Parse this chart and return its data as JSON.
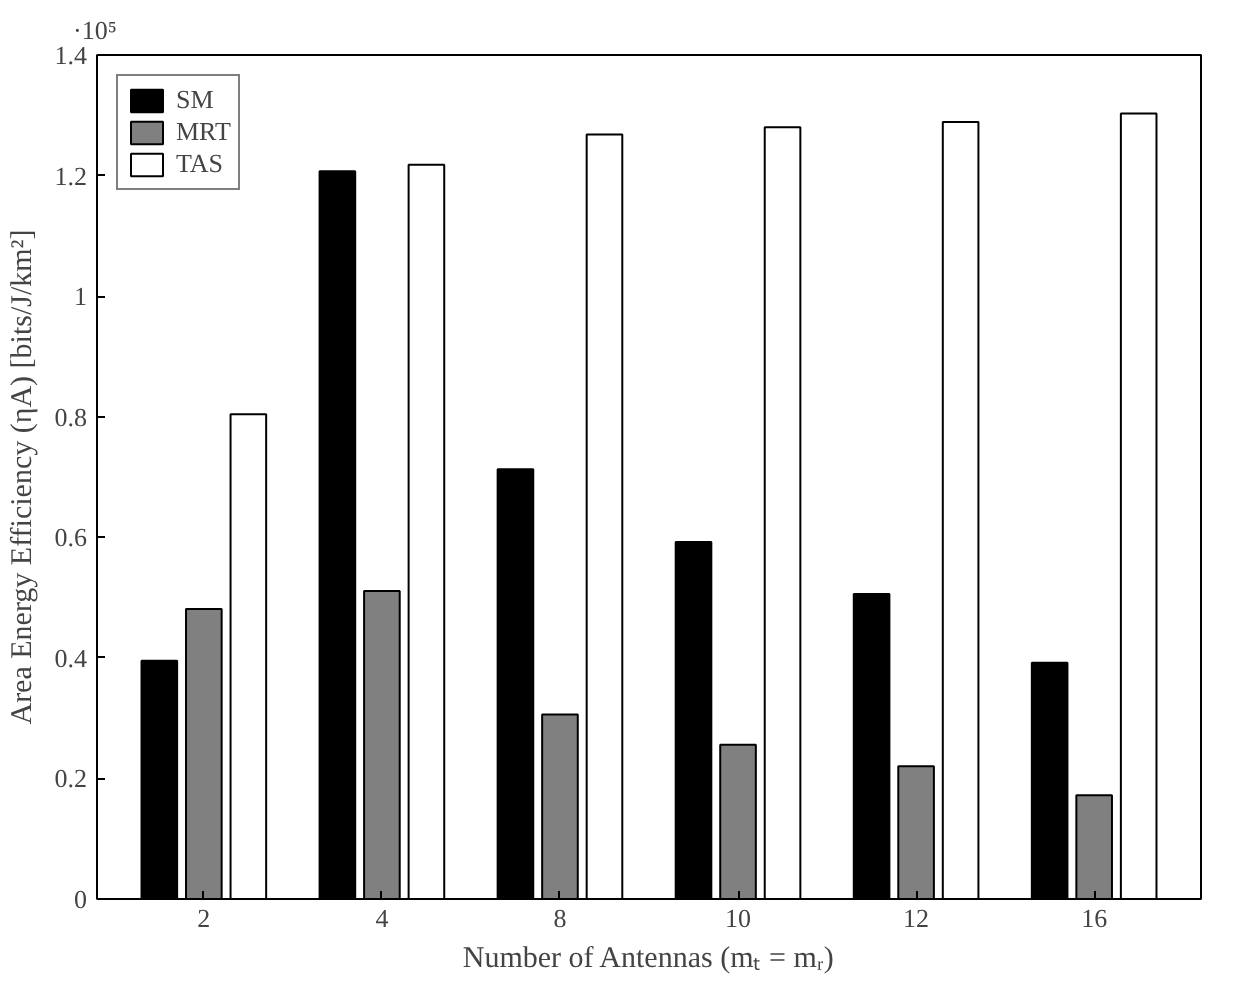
{
  "chart_data": {
    "type": "bar",
    "xlabel": "Number of Antennas (mₜ = mᵣ)",
    "ylabel": "Area Energy Efficiency (ηA) [bits/J/km²]",
    "categories": [
      "2",
      "4",
      "8",
      "10",
      "12",
      "16"
    ],
    "series": [
      {
        "name": "SM",
        "color": "#000000",
        "values": [
          0.395,
          1.207,
          0.713,
          0.592,
          0.506,
          0.392
        ]
      },
      {
        "name": "MRT",
        "color": "#808080",
        "values": [
          0.481,
          0.511,
          0.306,
          0.256,
          0.22,
          0.172
        ]
      },
      {
        "name": "TAS",
        "color": "#ffffff",
        "values": [
          0.804,
          1.218,
          1.268,
          1.28,
          1.289,
          1.303
        ]
      }
    ],
    "ylim": [
      0,
      1.4
    ],
    "yticks": [
      0,
      0.2,
      0.4,
      0.6,
      0.8,
      1,
      1.2,
      1.4
    ],
    "annotations": [
      "·10⁵"
    ],
    "legend": "top left",
    "grid": false
  }
}
